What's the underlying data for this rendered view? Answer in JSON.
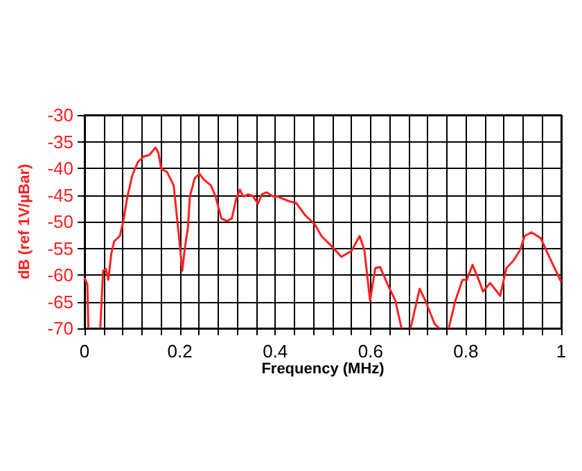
{
  "chart_data": {
    "type": "line",
    "xlabel": "Frequency (MHz)",
    "ylabel": "dB (ref 1V/µBar)",
    "xlim": [
      0,
      1
    ],
    "xticks": [
      0,
      {
        "value": 0.04,
        "label": null
      },
      {
        "value": 0.08,
        "label": null
      },
      {
        "value": 0.12,
        "label": null
      },
      {
        "value": 0.16,
        "label": null
      },
      {
        "value": 0.2,
        "label": "0.2"
      },
      {
        "value": 0.24,
        "label": null
      },
      {
        "value": 0.28,
        "label": null
      },
      {
        "value": 0.32,
        "label": null
      },
      {
        "value": 0.36,
        "label": null
      },
      {
        "value": 0.4,
        "label": "0.4"
      },
      {
        "value": 0.44,
        "label": null
      },
      {
        "value": 0.48,
        "label": null
      },
      {
        "value": 0.52,
        "label": null
      },
      {
        "value": 0.56,
        "label": null
      },
      {
        "value": 0.6,
        "label": "0.6"
      },
      {
        "value": 0.64,
        "label": null
      },
      {
        "value": 0.68,
        "label": null
      },
      {
        "value": 0.72,
        "label": null
      },
      {
        "value": 0.76,
        "label": null
      },
      {
        "value": 0.8,
        "label": "0.8"
      },
      {
        "value": 0.84,
        "label": null
      },
      {
        "value": 0.88,
        "label": null
      },
      {
        "value": 0.92,
        "label": null
      },
      {
        "value": 0.96,
        "label": null
      },
      1
    ],
    "ylim": [
      -70,
      -30
    ],
    "yticks": [
      -70,
      -65,
      -60,
      -55,
      -50,
      -45,
      -40,
      -35,
      -30
    ],
    "grid": true,
    "marker": "none",
    "line_style": "solid",
    "series": [
      {
        "color": "#ff2020",
        "x": [
          0,
          0.006,
          0.008,
          0.02,
          0.033,
          0.039,
          0.045,
          0.05,
          0.056,
          0.062,
          0.074,
          0.081,
          0.09,
          0.1,
          0.112,
          0.124,
          0.136,
          0.149,
          0.155,
          0.161,
          0.173,
          0.187,
          0.197,
          0.205,
          0.21,
          0.217,
          0.221,
          0.231,
          0.241,
          0.25,
          0.265,
          0.275,
          0.287,
          0.299,
          0.309,
          0.318,
          0.326,
          0.333,
          0.343,
          0.353,
          0.364,
          0.372,
          0.382,
          0.396,
          0.405,
          0.43,
          0.444,
          0.463,
          0.483,
          0.497,
          0.516,
          0.539,
          0.56,
          0.577,
          0.587,
          0.599,
          0.61,
          0.62,
          0.638,
          0.652,
          0.665,
          0.675,
          0.684,
          0.703,
          0.715,
          0.734,
          0.744,
          0.754,
          0.764,
          0.778,
          0.793,
          0.802,
          0.814,
          0.827,
          0.836,
          0.851,
          0.872,
          0.885,
          0.899,
          0.914,
          0.923,
          0.938,
          0.957,
          0.977,
          1
        ],
        "values": [
          -60.5,
          -61.8,
          -70,
          null,
          -70,
          -59.2,
          -58.9,
          -60.9,
          -56.1,
          -53.7,
          -52.7,
          -50.1,
          -45.3,
          -41.4,
          -38.8,
          -37.8,
          -37.5,
          -36.1,
          -37.1,
          -40.1,
          -40.7,
          -43.2,
          -51.8,
          -59.2,
          -55.3,
          -51,
          -45.3,
          -41.9,
          -41,
          -42.1,
          -43.2,
          -45.3,
          -49.4,
          -49.9,
          -49.4,
          -45.8,
          -44,
          -45.3,
          -44.9,
          -45.2,
          -46.6,
          -44.9,
          -44.5,
          -45.3,
          -45.3,
          -46.2,
          -46.5,
          -48.8,
          -50.5,
          -52.7,
          -54.4,
          -56.6,
          -55.5,
          -52.7,
          -55.3,
          -64.8,
          -58.7,
          -58.5,
          -62.2,
          -64.8,
          -70,
          null,
          -70,
          -62.6,
          -64.8,
          -69.1,
          -70,
          null,
          -70,
          -64.8,
          -60.9,
          -60.9,
          -58.1,
          -60.9,
          -63.1,
          -61.5,
          -63.9,
          -58.7,
          -57.4,
          -55.3,
          -52.7,
          -52,
          -53.1,
          -57,
          -61.3
        ]
      }
    ]
  }
}
